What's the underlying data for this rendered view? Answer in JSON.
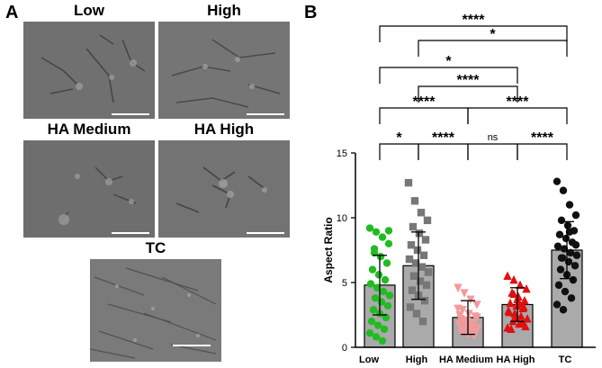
{
  "panel_a": {
    "letter": "A",
    "images": [
      {
        "label": "Low"
      },
      {
        "label": "High"
      },
      {
        "label": "HA Medium"
      },
      {
        "label": "HA High"
      },
      {
        "label": "TC"
      }
    ]
  },
  "panel_b": {
    "letter": "B"
  },
  "chart_data": {
    "type": "bar",
    "ylabel": "Aspect Ratio",
    "ylim": [
      0,
      15
    ],
    "yticks": [
      0,
      5,
      10,
      15
    ],
    "categories": [
      "Low",
      "High",
      "HA Medium",
      "HA High",
      "TC"
    ],
    "values": [
      4.8,
      6.3,
      2.3,
      3.3,
      7.5
    ],
    "sd": [
      2.3,
      2.6,
      1.3,
      1.3,
      2.2
    ],
    "bar_color": "#aaaaaa",
    "points": [
      {
        "category": "Low",
        "color": "#22bb22",
        "marker": "circle",
        "values": [
          9.2,
          8.9,
          8.5,
          8.0,
          7.6,
          7.0,
          6.5,
          6.0,
          5.6,
          5.2,
          4.9,
          4.6,
          4.3,
          4.0,
          3.8,
          3.5,
          3.2,
          2.9,
          2.6,
          2.3,
          2.0,
          1.7,
          1.4,
          1.1,
          0.8,
          0.5,
          9.0,
          7.3
        ]
      },
      {
        "category": "High",
        "color": "#777777",
        "marker": "square",
        "values": [
          12.7,
          11.3,
          10.4,
          9.8,
          9.3,
          8.8,
          8.3,
          7.9,
          7.5,
          7.1,
          6.8,
          6.5,
          6.2,
          5.8,
          5.5,
          5.1,
          4.8,
          4.4,
          4.0,
          3.6,
          3.1,
          2.6,
          2.0
        ]
      },
      {
        "category": "HA Medium",
        "color": "#f29a9a",
        "marker": "triangle-down",
        "values": [
          4.6,
          4.2,
          3.7,
          3.3,
          2.9,
          2.6,
          2.4,
          2.2,
          2.0,
          1.9,
          1.8,
          1.7,
          1.6,
          1.5,
          1.4,
          1.3,
          1.2,
          1.1,
          1.0,
          0.9,
          2.5,
          2.1,
          1.6,
          3.0,
          1.9,
          1.4,
          2.3,
          1.2
        ]
      },
      {
        "category": "HA High",
        "color": "#e01010",
        "marker": "triangle-up",
        "values": [
          5.5,
          5.2,
          4.8,
          4.5,
          4.2,
          3.9,
          3.6,
          3.4,
          3.2,
          3.0,
          2.8,
          2.6,
          2.4,
          2.2,
          2.0,
          1.8,
          1.6,
          1.4,
          3.7,
          3.1,
          2.7,
          2.3,
          1.9,
          1.5,
          4.1,
          3.3
        ]
      },
      {
        "category": "TC",
        "color": "#111111",
        "marker": "circle",
        "values": [
          12.8,
          12.1,
          11.0,
          10.2,
          9.8,
          9.4,
          9.0,
          8.7,
          8.4,
          8.1,
          7.8,
          7.6,
          7.3,
          7.1,
          6.9,
          6.6,
          6.3,
          6.0,
          5.6,
          5.2,
          4.8,
          4.3,
          3.8,
          3.3,
          2.9,
          8.9,
          7.9,
          6.9
        ]
      }
    ],
    "comparisons": [
      {
        "from": "Low",
        "to": "TC",
        "label": "****"
      },
      {
        "from": "High",
        "to": "TC",
        "label": "*"
      },
      {
        "from": "Low",
        "to": "HA High",
        "label": "*"
      },
      {
        "from": "High",
        "to": "HA High",
        "label": "****"
      },
      {
        "from": "Low",
        "to": "HA Medium",
        "label": "****"
      },
      {
        "from": "HA Medium",
        "to": "TC",
        "label": "****"
      },
      {
        "from": "Low",
        "to": "High",
        "label": "*"
      },
      {
        "from": "High",
        "to": "HA Medium",
        "label": "****"
      },
      {
        "from": "HA Medium",
        "to": "HA High",
        "label": "ns"
      },
      {
        "from": "HA High",
        "to": "TC",
        "label": "****"
      }
    ]
  }
}
